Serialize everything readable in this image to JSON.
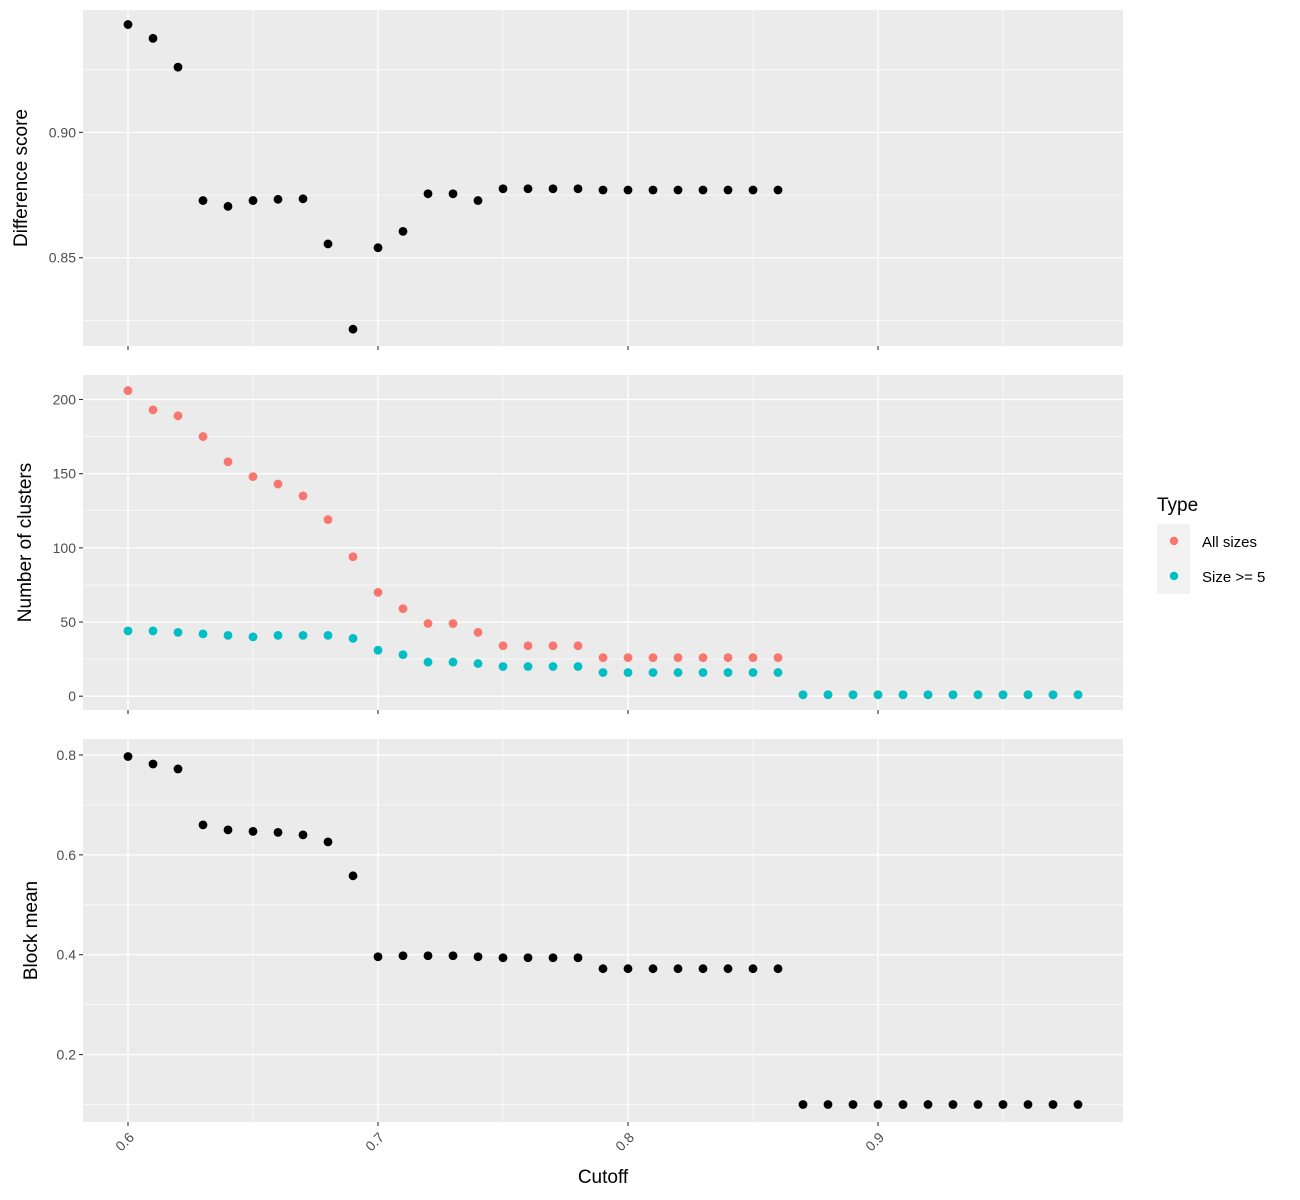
{
  "chart_data": {
    "type": "scatter",
    "xlabel": "Cutoff",
    "x_ticks": [
      0.6,
      0.7,
      0.8,
      0.9
    ],
    "x_tick_labels": [
      "0.6",
      "0.7",
      "0.8",
      "0.9"
    ],
    "xlim": [
      0.582,
      0.998
    ],
    "grid": true,
    "background_color": "#ebebeb",
    "legend": {
      "title": "Type",
      "position": "right",
      "entries": [
        {
          "label": "All sizes",
          "color": "#f8766d"
        },
        {
          "label": "Size >= 5",
          "color": "#00bfc4"
        }
      ]
    },
    "panels": [
      {
        "ylabel": "Difference score",
        "ylim": [
          0.8148,
          0.9488
        ],
        "y_ticks": [
          0.85,
          0.9
        ],
        "y_tick_labels": [
          "0.85",
          "0.90"
        ],
        "y_minor_ticks": [
          0.825,
          0.875,
          0.925
        ],
        "series": [
          {
            "color": "#000000",
            "x": [
              0.6,
              0.61,
              0.62,
              0.63,
              0.64,
              0.65,
              0.66,
              0.67,
              0.68,
              0.69,
              0.7,
              0.71,
              0.72,
              0.73,
              0.74,
              0.75,
              0.76,
              0.77,
              0.78,
              0.79,
              0.8,
              0.81,
              0.82,
              0.83,
              0.84,
              0.85,
              0.86
            ],
            "values": [
              0.943,
              0.9375,
              0.926,
              0.8728,
              0.8705,
              0.8728,
              0.8733,
              0.8735,
              0.8555,
              0.8215,
              0.854,
              0.8605,
              0.8755,
              0.8755,
              0.8728,
              0.8775,
              0.8775,
              0.8775,
              0.8775,
              0.877,
              0.877,
              0.877,
              0.877,
              0.877,
              0.877,
              0.877,
              0.877
            ]
          }
        ]
      },
      {
        "ylabel": "Number of clusters",
        "ylim": [
          -9.3,
          216.5
        ],
        "y_ticks": [
          0,
          50,
          100,
          150,
          200
        ],
        "y_tick_labels": [
          "0",
          "50",
          "100",
          "150",
          "200"
        ],
        "y_minor_ticks": [
          25,
          75,
          125,
          175
        ],
        "series": [
          {
            "name": "All sizes",
            "color": "#f8766d",
            "x": [
              0.6,
              0.61,
              0.62,
              0.63,
              0.64,
              0.65,
              0.66,
              0.67,
              0.68,
              0.69,
              0.7,
              0.71,
              0.72,
              0.73,
              0.74,
              0.75,
              0.76,
              0.77,
              0.78,
              0.79,
              0.8,
              0.81,
              0.82,
              0.83,
              0.84,
              0.85,
              0.86,
              0.87,
              0.88,
              0.89,
              0.9,
              0.91,
              0.92,
              0.93,
              0.94,
              0.95,
              0.96,
              0.97,
              0.98
            ],
            "values": [
              206,
              193,
              189,
              175,
              158,
              148,
              143,
              135,
              119,
              94,
              70,
              59,
              49,
              49,
              43,
              34,
              34,
              34,
              34,
              26,
              26,
              26,
              26,
              26,
              26,
              26,
              26,
              1,
              1,
              1,
              1,
              1,
              1,
              1,
              1,
              1,
              1,
              1,
              1
            ]
          },
          {
            "name": "Size >= 5",
            "color": "#00bfc4",
            "x": [
              0.6,
              0.61,
              0.62,
              0.63,
              0.64,
              0.65,
              0.66,
              0.67,
              0.68,
              0.69,
              0.7,
              0.71,
              0.72,
              0.73,
              0.74,
              0.75,
              0.76,
              0.77,
              0.78,
              0.79,
              0.8,
              0.81,
              0.82,
              0.83,
              0.84,
              0.85,
              0.86,
              0.87,
              0.88,
              0.89,
              0.9,
              0.91,
              0.92,
              0.93,
              0.94,
              0.95,
              0.96,
              0.97,
              0.98
            ],
            "values": [
              44,
              44,
              43,
              42,
              41,
              40,
              41,
              41,
              41,
              39,
              31,
              28,
              23,
              23,
              22,
              20,
              20,
              20,
              20,
              16,
              16,
              16,
              16,
              16,
              16,
              16,
              16,
              1,
              1,
              1,
              1,
              1,
              1,
              1,
              1,
              1,
              1,
              1,
              1
            ]
          }
        ]
      },
      {
        "ylabel": "Block mean",
        "ylim": [
          0.065,
          0.832
        ],
        "y_ticks": [
          0.2,
          0.4,
          0.6,
          0.8
        ],
        "y_tick_labels": [
          "0.2",
          "0.4",
          "0.6",
          "0.8"
        ],
        "y_minor_ticks": [
          0.1,
          0.3,
          0.5,
          0.7
        ],
        "series": [
          {
            "color": "#000000",
            "x": [
              0.6,
              0.61,
              0.62,
              0.63,
              0.64,
              0.65,
              0.66,
              0.67,
              0.68,
              0.69,
              0.7,
              0.71,
              0.72,
              0.73,
              0.74,
              0.75,
              0.76,
              0.77,
              0.78,
              0.79,
              0.8,
              0.81,
              0.82,
              0.83,
              0.84,
              0.85,
              0.86,
              0.87,
              0.88,
              0.89,
              0.9,
              0.91,
              0.92,
              0.93,
              0.94,
              0.95,
              0.96,
              0.97,
              0.98
            ],
            "values": [
              0.797,
              0.782,
              0.772,
              0.66,
              0.65,
              0.647,
              0.645,
              0.64,
              0.626,
              0.558,
              0.396,
              0.398,
              0.398,
              0.398,
              0.396,
              0.394,
              0.394,
              0.394,
              0.394,
              0.372,
              0.372,
              0.372,
              0.372,
              0.372,
              0.372,
              0.372,
              0.372,
              0.1,
              0.1,
              0.1,
              0.1,
              0.1,
              0.1,
              0.1,
              0.1,
              0.1,
              0.1,
              0.1,
              0.1
            ]
          }
        ]
      }
    ]
  }
}
